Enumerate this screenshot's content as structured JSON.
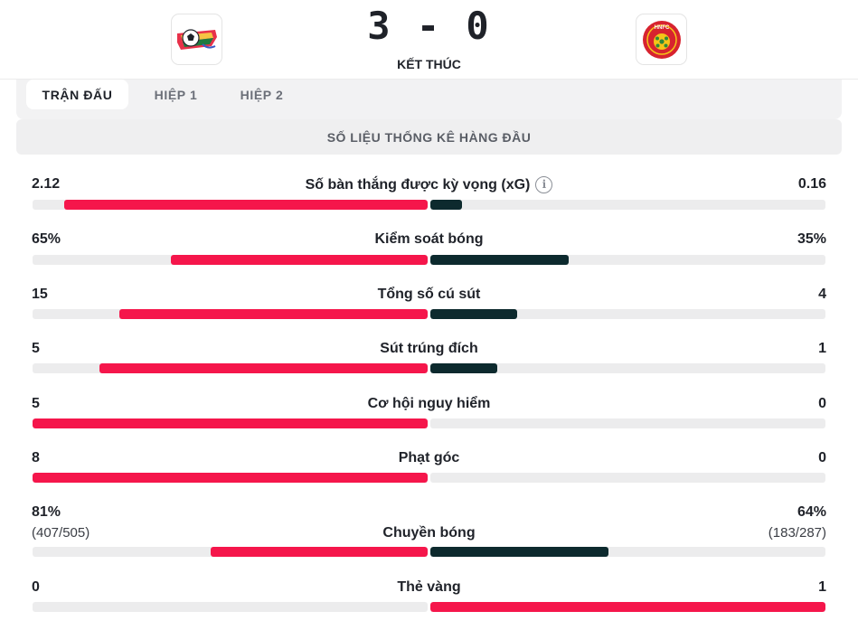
{
  "match": {
    "score": "3 - 0",
    "status": "KẾT THÚC",
    "home_logo": "home-team-logo-icon",
    "away_logo": "away-team-logo-icon",
    "away_logo_text": "HNFC"
  },
  "tabs": [
    {
      "label": "TRẬN ĐẤU",
      "active": true
    },
    {
      "label": "HIỆP 1",
      "active": false
    },
    {
      "label": "HIỆP 2",
      "active": false
    }
  ],
  "section_title": "SỐ LIỆU THỐNG KÊ HÀNG ĐẦU",
  "colors": {
    "home": "#f5164b",
    "away": "#0d2a2e",
    "track": "#ececed"
  },
  "stats": [
    {
      "label": "Số bàn thắng được kỳ vọng (xG)",
      "home": "2.12",
      "away": "0.16",
      "home_fill": 0.92,
      "away_fill": 0.08,
      "info": true
    },
    {
      "label": "Kiểm soát bóng",
      "home": "65%",
      "away": "35%",
      "home_fill": 0.65,
      "away_fill": 0.35
    },
    {
      "label": "Tổng số cú sút",
      "home": "15",
      "away": "4",
      "home_fill": 0.78,
      "away_fill": 0.22
    },
    {
      "label": "Sút trúng đích",
      "home": "5",
      "away": "1",
      "home_fill": 0.83,
      "away_fill": 0.17
    },
    {
      "label": "Cơ hội nguy hiểm",
      "home": "5",
      "away": "0",
      "home_fill": 1.0,
      "away_fill": 0.0
    },
    {
      "label": "Phạt góc",
      "home": "8",
      "away": "0",
      "home_fill": 1.0,
      "away_fill": 0.0
    },
    {
      "label": "Chuyền bóng",
      "home": "81%",
      "away": "64%",
      "home_sub": "(407/505)",
      "away_sub": "(183/287)",
      "home_fill": 0.55,
      "away_fill": 0.45
    },
    {
      "label": "Thẻ vàng",
      "home": "0",
      "away": "1",
      "home_fill": 0.0,
      "away_fill": 1.0,
      "away_color_home": true
    }
  ]
}
